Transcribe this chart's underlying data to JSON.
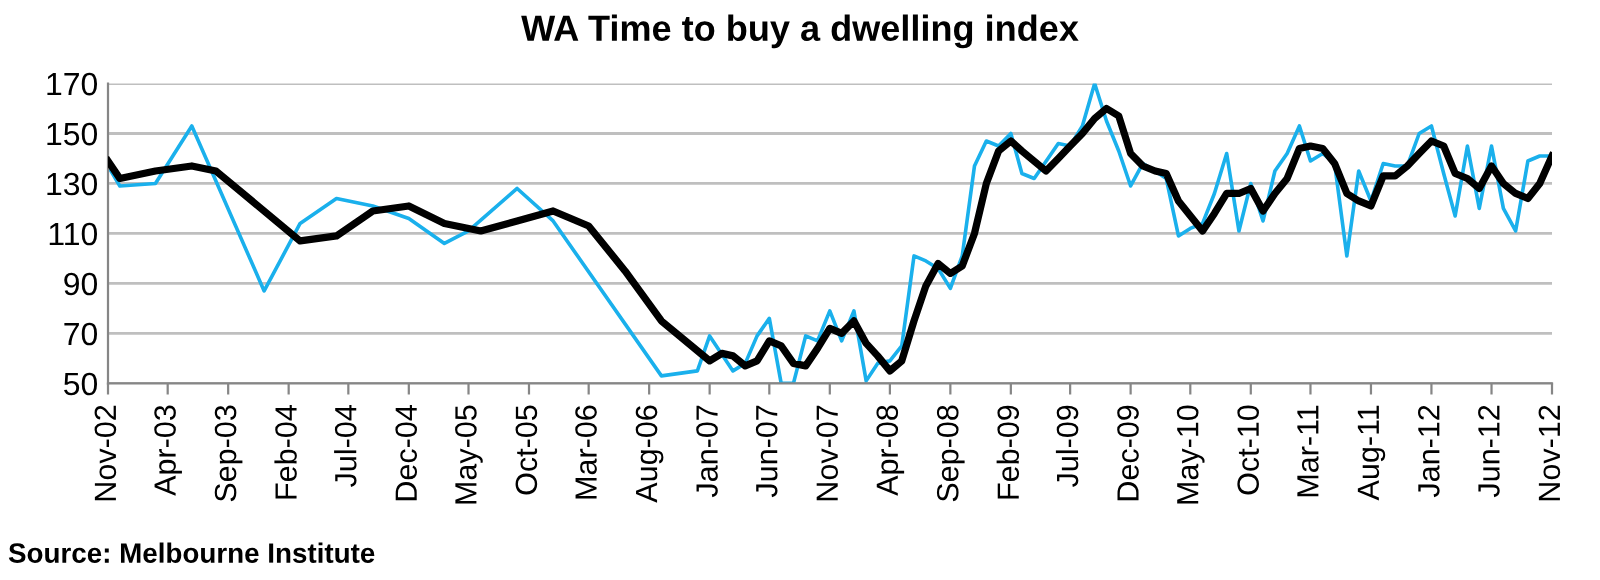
{
  "chart_data": {
    "type": "line",
    "title": "WA Time to buy a dwelling index",
    "annotations": [
      "Source: Melbourne Institute"
    ],
    "grid": "y",
    "legend": false,
    "marker": "none",
    "line_style": "solid",
    "xlim": [
      "2002-11",
      "2012-11"
    ],
    "xticks": [
      {
        "value": "2002-11",
        "label": "Nov-02"
      },
      {
        "value": "2003-04",
        "label": "Apr-03"
      },
      {
        "value": "2003-09",
        "label": "Sep-03"
      },
      {
        "value": "2004-02",
        "label": "Feb-04"
      },
      {
        "value": "2004-07",
        "label": "Jul-04"
      },
      {
        "value": "2004-12",
        "label": "Dec-04"
      },
      {
        "value": "2005-05",
        "label": "May-05"
      },
      {
        "value": "2005-10",
        "label": "Oct-05"
      },
      {
        "value": "2006-03",
        "label": "Mar-06"
      },
      {
        "value": "2006-08",
        "label": "Aug-06"
      },
      {
        "value": "2007-01",
        "label": "Jan-07"
      },
      {
        "value": "2007-06",
        "label": "Jun-07"
      },
      {
        "value": "2007-11",
        "label": "Nov-07"
      },
      {
        "value": "2008-04",
        "label": "Apr-08"
      },
      {
        "value": "2008-09",
        "label": "Sep-08"
      },
      {
        "value": "2009-02",
        "label": "Feb-09"
      },
      {
        "value": "2009-07",
        "label": "Jul-09"
      },
      {
        "value": "2009-12",
        "label": "Dec-09"
      },
      {
        "value": "2010-05",
        "label": "May-10"
      },
      {
        "value": "2010-10",
        "label": "Oct-10"
      },
      {
        "value": "2011-03",
        "label": "Mar-11"
      },
      {
        "value": "2011-08",
        "label": "Aug-11"
      },
      {
        "value": "2012-01",
        "label": "Jan-12"
      },
      {
        "value": "2012-06",
        "label": "Jun-12"
      },
      {
        "value": "2012-11",
        "label": "Nov-12"
      }
    ],
    "ylim": [
      50,
      170
    ],
    "yticks": [
      50,
      70,
      90,
      110,
      130,
      150,
      170
    ],
    "series": [
      {
        "color": "#1ab0ec",
        "x": [
          "2002-11",
          "2002-12",
          "2003-03",
          "2003-06",
          "2003-12",
          "2004-03",
          "2004-06",
          "2004-09",
          "2004-12",
          "2005-03",
          "2005-05",
          "2005-09",
          "2005-12",
          "2006-09",
          "2006-12",
          "2007-01",
          "2007-03",
          "2007-04",
          "2007-05",
          "2007-06",
          "2007-07",
          "2007-08",
          "2007-09",
          "2007-10",
          "2007-11",
          "2007-12",
          "2008-01",
          "2008-02",
          "2008-03",
          "2008-04",
          "2008-05",
          "2008-06",
          "2008-07",
          "2008-08",
          "2008-09",
          "2008-10",
          "2008-11",
          "2008-12",
          "2009-01",
          "2009-02",
          "2009-03",
          "2009-04",
          "2009-06",
          "2009-07",
          "2009-08",
          "2009-09",
          "2009-10",
          "2009-11",
          "2009-12",
          "2010-01",
          "2010-02",
          "2010-03",
          "2010-04",
          "2010-05",
          "2010-06",
          "2010-07",
          "2010-08",
          "2010-09",
          "2010-10",
          "2010-11",
          "2010-12",
          "2011-01",
          "2011-02",
          "2011-03",
          "2011-04",
          "2011-05",
          "2011-06",
          "2011-07",
          "2011-08",
          "2011-09",
          "2011-10",
          "2011-11",
          "2011-12",
          "2012-01",
          "2012-02",
          "2012-03",
          "2012-04",
          "2012-05",
          "2012-06",
          "2012-07",
          "2012-08",
          "2012-09",
          "2012-10",
          "2012-11"
        ],
        "values": [
          137,
          129,
          130,
          153,
          87,
          114,
          124,
          121,
          116,
          106,
          111,
          128,
          115,
          53,
          55,
          69,
          55,
          58,
          69,
          76,
          50,
          50,
          69,
          67,
          79,
          67,
          79,
          51,
          58,
          59,
          65,
          101,
          99,
          96,
          88,
          101,
          137,
          147,
          145,
          150,
          134,
          132,
          146,
          145,
          153,
          170,
          155,
          143,
          129,
          138,
          135,
          132,
          109,
          112,
          114,
          126,
          142,
          111,
          130,
          115,
          135,
          142,
          153,
          139,
          142,
          138,
          101,
          135,
          123,
          138,
          137,
          137,
          150,
          153,
          134,
          117,
          145,
          120,
          145,
          120,
          111,
          139,
          141,
          141
        ]
      },
      {
        "color": "#000000",
        "x": [
          "2002-11",
          "2002-12",
          "2003-03",
          "2003-06",
          "2003-08",
          "2004-03",
          "2004-06",
          "2004-09",
          "2004-12",
          "2005-03",
          "2005-06",
          "2005-09",
          "2005-12",
          "2006-03",
          "2006-06",
          "2006-09",
          "2007-01",
          "2007-02",
          "2007-03",
          "2007-04",
          "2007-05",
          "2007-06",
          "2007-07",
          "2007-08",
          "2007-09",
          "2007-10",
          "2007-11",
          "2007-12",
          "2008-01",
          "2008-02",
          "2008-03",
          "2008-04",
          "2008-05",
          "2008-06",
          "2008-07",
          "2008-08",
          "2008-09",
          "2008-10",
          "2008-11",
          "2008-12",
          "2009-01",
          "2009-02",
          "2009-03",
          "2009-05",
          "2009-06",
          "2009-07",
          "2009-08",
          "2009-09",
          "2009-10",
          "2009-11",
          "2009-12",
          "2010-01",
          "2010-02",
          "2010-03",
          "2010-04",
          "2010-06",
          "2010-07",
          "2010-08",
          "2010-09",
          "2010-10",
          "2010-11",
          "2010-12",
          "2011-01",
          "2011-02",
          "2011-03",
          "2011-04",
          "2011-05",
          "2011-06",
          "2011-07",
          "2011-08",
          "2011-09",
          "2011-10",
          "2011-11",
          "2011-12",
          "2012-01",
          "2012-02",
          "2012-03",
          "2012-04",
          "2012-05",
          "2012-06",
          "2012-07",
          "2012-08",
          "2012-09",
          "2012-10",
          "2012-11"
        ],
        "values": [
          139,
          132,
          135,
          137,
          135,
          107,
          109,
          119,
          121,
          114,
          111,
          115,
          119,
          113,
          95,
          75,
          59,
          62,
          61,
          57,
          59,
          67,
          65,
          58,
          57,
          64,
          72,
          70,
          75,
          66,
          61,
          55,
          59,
          75,
          89,
          98,
          94,
          97,
          110,
          130,
          143,
          147,
          143,
          135,
          140,
          145,
          150,
          156,
          160,
          157,
          142,
          137,
          135,
          134,
          123,
          111,
          118,
          126,
          126,
          128,
          119,
          126,
          132,
          144,
          145,
          144,
          138,
          126,
          123,
          121,
          133,
          133,
          137,
          142,
          147,
          145,
          134,
          132,
          128,
          137,
          130,
          126,
          124,
          130,
          141
        ]
      }
    ]
  }
}
